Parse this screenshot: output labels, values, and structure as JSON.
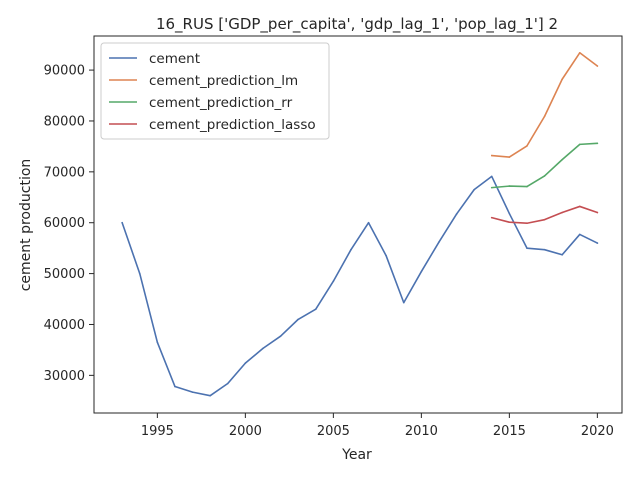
{
  "chart_data": {
    "type": "line",
    "title": "16_RUS ['GDP_per_capita', 'gdp_lag_1', 'pop_lag_1'] 2",
    "xlabel": "Year",
    "ylabel": "cement production",
    "xlim": [
      1991.4,
      2021.4
    ],
    "ylim": [
      22600,
      96700
    ],
    "xticks": [
      1995,
      2000,
      2005,
      2010,
      2015,
      2020
    ],
    "xtick_labels": [
      "1995",
      "2000",
      "2005",
      "2010",
      "2015",
      "2020"
    ],
    "yticks": [
      30000,
      40000,
      50000,
      60000,
      70000,
      80000,
      90000
    ],
    "ytick_labels": [
      "30000",
      "40000",
      "50000",
      "60000",
      "70000",
      "80000",
      "90000"
    ],
    "grid": false,
    "legend_position": "top-left",
    "series": [
      {
        "name": "cement",
        "color": "#4c72b0",
        "x": [
          1993,
          1994,
          1995,
          1996,
          1997,
          1998,
          1999,
          2000,
          2001,
          2002,
          2003,
          2004,
          2005,
          2006,
          2007,
          2008,
          2009,
          2010,
          2011,
          2012,
          2013,
          2014,
          2015,
          2016,
          2017,
          2018,
          2019,
          2020
        ],
        "y": [
          60000,
          50000,
          36500,
          27800,
          26700,
          26000,
          28400,
          32400,
          35300,
          37700,
          41000,
          43000,
          48500,
          54700,
          60000,
          53500,
          44300,
          50400,
          56200,
          61700,
          66500,
          69100,
          61800,
          55000,
          54700,
          53700,
          57700,
          56000
        ]
      },
      {
        "name": "cement_prediction_lm",
        "color": "#dd8452",
        "x": [
          2014,
          2015,
          2016,
          2017,
          2018,
          2019,
          2020
        ],
        "y": [
          73200,
          72900,
          75100,
          80900,
          88200,
          93400,
          90800
        ]
      },
      {
        "name": "cement_prediction_rr",
        "color": "#55a868",
        "x": [
          2014,
          2015,
          2016,
          2017,
          2018,
          2019,
          2020
        ],
        "y": [
          66900,
          67200,
          67100,
          69200,
          72400,
          75400,
          75600
        ]
      },
      {
        "name": "cement_prediction_lasso",
        "color": "#c44e52",
        "x": [
          2014,
          2015,
          2016,
          2017,
          2018,
          2019,
          2020
        ],
        "y": [
          61000,
          60100,
          59900,
          60600,
          62000,
          63200,
          62000
        ]
      }
    ]
  }
}
